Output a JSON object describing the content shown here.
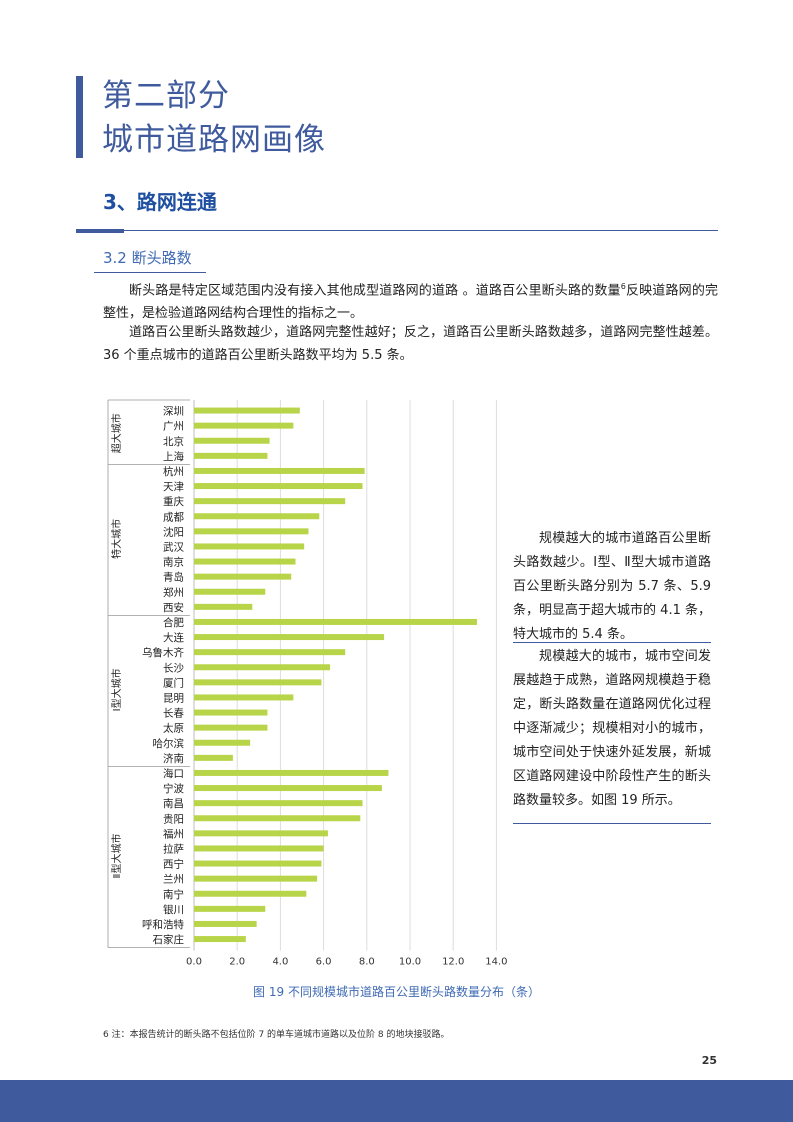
{
  "header": {
    "part_line1": "第二部分",
    "part_line2": "城市道路网画像",
    "section_title": "3、路网连通",
    "subsection_title": "3.2 断头路数"
  },
  "body": {
    "para1_a": "断头路是特定区域范围内没有接入其他成型道路网的道路 。道路百公里断头路的数量",
    "para1_sup": "6",
    "para1_b": "反映道路网的完整性，是检验道路网结构合理性的指标之一。",
    "para2": "道路百公里断头路数越少，道路网完整性越好；反之，道路百公里断头路数越多，道路网完整性越差。36 个重点城市的道路百公里断头路数平均为 5.5 条。"
  },
  "side": {
    "box1": "规模越大的城市道路百公里断头路数越少。Ⅰ型、Ⅱ型大城市道路百公里断头路分别为 5.7 条、5.9 条，明显高于超大城市的 4.1 条，特大城市的 5.4 条。",
    "box2": "规模越大的城市，城市空间发展越趋于成熟，道路网规模趋于稳定，断头路数量在道路网优化过程中逐渐减少；规模相对小的城市，城市空间处于快速外延发展，新城区道路网建设中阶段性产生的断头路数量较多。如图 19 所示。"
  },
  "chart_data": {
    "type": "bar",
    "orientation": "horizontal",
    "xlim": [
      0,
      14
    ],
    "ticks": [
      "0.0",
      "2.0",
      "4.0",
      "6.0",
      "8.0",
      "10.0",
      "12.0",
      "14.0"
    ],
    "bar_color": "#b8d54a",
    "groups": [
      {
        "name": "超大城市",
        "categories": [
          "深圳",
          "广州",
          "北京",
          "上海"
        ],
        "values": [
          4.9,
          4.6,
          3.5,
          3.4
        ]
      },
      {
        "name": "特大城市",
        "categories": [
          "杭州",
          "天津",
          "重庆",
          "成都",
          "沈阳",
          "武汉",
          "南京",
          "青岛",
          "郑州",
          "西安"
        ],
        "values": [
          7.9,
          7.8,
          7.0,
          5.8,
          5.3,
          5.1,
          4.7,
          4.5,
          3.3,
          2.7
        ]
      },
      {
        "name": "Ⅰ型大城市",
        "categories": [
          "合肥",
          "大连",
          "乌鲁木齐",
          "长沙",
          "厦门",
          "昆明",
          "长春",
          "太原",
          "哈尔滨",
          "济南"
        ],
        "values": [
          13.1,
          8.8,
          7.0,
          6.3,
          5.9,
          4.6,
          3.4,
          3.4,
          2.6,
          1.8
        ]
      },
      {
        "name": "Ⅱ型大城市",
        "categories": [
          "海口",
          "宁波",
          "南昌",
          "贵阳",
          "福州",
          "拉萨",
          "西宁",
          "兰州",
          "南宁",
          "银川",
          "呼和浩特",
          "石家庄"
        ],
        "values": [
          9.0,
          8.7,
          7.8,
          7.7,
          6.2,
          6.0,
          5.9,
          5.7,
          5.2,
          3.3,
          2.9,
          2.4
        ]
      }
    ]
  },
  "caption": "图 19  不同规模城市道路百公里断头路数量分布（条）",
  "footnote": "6 注：本报告统计的断头路不包括位阶 7 的单车道城市道路以及位阶 8 的地块接驳路。",
  "page_number": "25"
}
